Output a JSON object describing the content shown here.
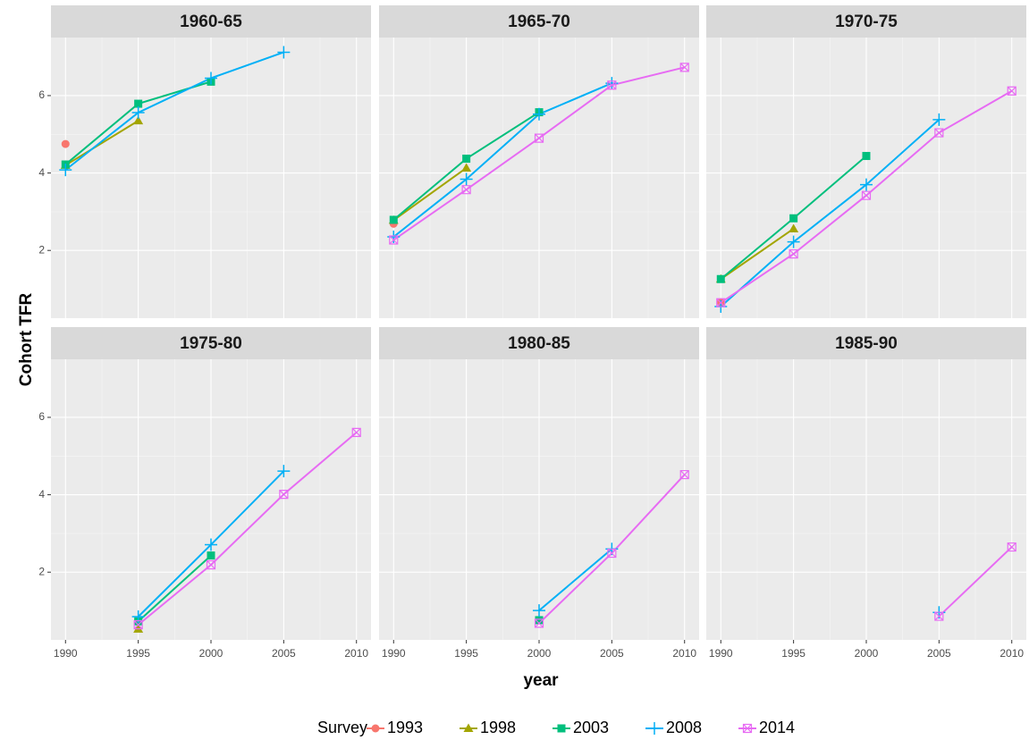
{
  "chart_data": {
    "type": "line",
    "x_label": "year",
    "y_label": "Cohort TFR",
    "legend_title": "Survey",
    "x": [
      1990,
      1995,
      2000,
      2005,
      2010
    ],
    "xlim": [
      1989,
      2011
    ],
    "ylim": [
      0.25,
      7.5
    ],
    "xticks": [
      1990,
      1995,
      2000,
      2005,
      2010
    ],
    "yticks": [
      2,
      4,
      6
    ],
    "grid": true,
    "series": [
      {
        "name": "1993",
        "color": "#F8766D",
        "marker": "circle"
      },
      {
        "name": "1998",
        "color": "#A3A500",
        "marker": "triangle"
      },
      {
        "name": "2003",
        "color": "#00BF7D",
        "marker": "square"
      },
      {
        "name": "2008",
        "color": "#00B0F6",
        "marker": "plus"
      },
      {
        "name": "2014",
        "color": "#E76BF3",
        "marker": "boxx"
      }
    ],
    "facets": [
      {
        "title": "1960-65",
        "values": [
          [
            4.75,
            null,
            null,
            null,
            null
          ],
          [
            4.2,
            5.35,
            null,
            null,
            null
          ],
          [
            4.22,
            5.79,
            6.36,
            null,
            null
          ],
          [
            4.08,
            5.56,
            6.45,
            7.12,
            null
          ],
          [
            null,
            null,
            null,
            null,
            null
          ]
        ]
      },
      {
        "title": "1965-70",
        "values": [
          [
            2.69,
            null,
            null,
            null,
            null
          ],
          [
            2.78,
            4.13,
            null,
            null,
            null
          ],
          [
            2.79,
            4.37,
            5.57,
            null,
            null
          ],
          [
            2.35,
            3.84,
            5.52,
            6.32,
            null
          ],
          [
            2.27,
            3.57,
            4.9,
            6.27,
            6.73
          ]
        ]
      },
      {
        "title": "1970-75",
        "values": [
          [
            0.66,
            null,
            null,
            null,
            null
          ],
          [
            1.26,
            2.56,
            null,
            null,
            null
          ],
          [
            1.26,
            2.83,
            4.44,
            null,
            null
          ],
          [
            0.55,
            2.22,
            3.7,
            5.38,
            null
          ],
          [
            0.65,
            1.91,
            3.42,
            5.04,
            6.12
          ]
        ]
      },
      {
        "title": "1975-80",
        "values": [
          [
            null,
            null,
            null,
            null,
            null
          ],
          [
            null,
            0.53,
            null,
            null,
            null
          ],
          [
            null,
            0.73,
            2.43,
            null,
            null
          ],
          [
            null,
            0.85,
            2.71,
            4.61,
            null
          ],
          [
            null,
            0.64,
            2.19,
            4.01,
            5.61
          ]
        ]
      },
      {
        "title": "1980-85",
        "values": [
          [
            null,
            null,
            null,
            null,
            null
          ],
          [
            null,
            null,
            null,
            null,
            null
          ],
          [
            null,
            null,
            0.76,
            null,
            null
          ],
          [
            null,
            null,
            1.01,
            2.6,
            null
          ],
          [
            null,
            null,
            0.68,
            2.49,
            4.52
          ]
        ]
      },
      {
        "title": "1985-90",
        "values": [
          [
            null,
            null,
            null,
            null,
            null
          ],
          [
            null,
            null,
            null,
            null,
            null
          ],
          [
            null,
            null,
            null,
            null,
            null
          ],
          [
            null,
            null,
            null,
            0.96,
            null
          ],
          [
            null,
            null,
            null,
            0.86,
            2.65
          ]
        ]
      }
    ]
  }
}
